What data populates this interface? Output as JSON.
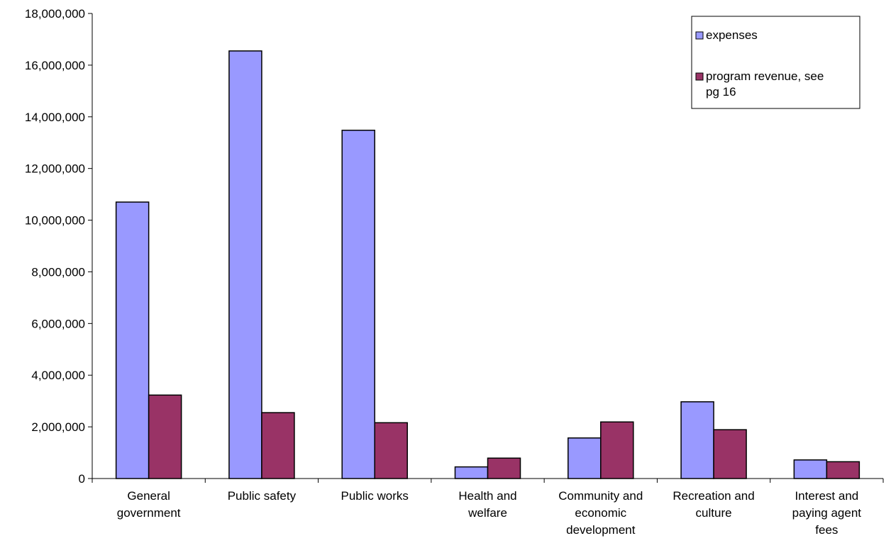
{
  "chart_data": {
    "type": "bar",
    "title": "",
    "xlabel": "",
    "ylabel": "",
    "ylim": [
      0,
      18000000
    ],
    "yticks": [
      0,
      2000000,
      4000000,
      6000000,
      8000000,
      10000000,
      12000000,
      14000000,
      16000000,
      18000000
    ],
    "ytick_labels": [
      "0",
      "2,000,000",
      "4,000,000",
      "6,000,000",
      "8,000,000",
      "10,000,000",
      "12,000,000",
      "14,000,000",
      "16,000,000",
      "18,000,000"
    ],
    "grid": false,
    "legend_position": "top-right",
    "categories": [
      [
        "General",
        "government"
      ],
      [
        "Public safety"
      ],
      [
        "Public works"
      ],
      [
        "Health and",
        "welfare"
      ],
      [
        "Community and",
        "economic",
        "development"
      ],
      [
        "Recreation and",
        "culture"
      ],
      [
        "Interest and",
        "paying agent",
        "fees"
      ]
    ],
    "series": [
      {
        "name": "expenses",
        "color": "#9999FF",
        "values": [
          10700000,
          16550000,
          13480000,
          450000,
          1570000,
          2970000,
          720000
        ]
      },
      {
        "name": "program revenue, see pg 16",
        "legend_lines": [
          "program revenue, see",
          "pg 16"
        ],
        "color": "#993366",
        "values": [
          3230000,
          2550000,
          2160000,
          790000,
          2190000,
          1890000,
          650000
        ]
      }
    ]
  }
}
